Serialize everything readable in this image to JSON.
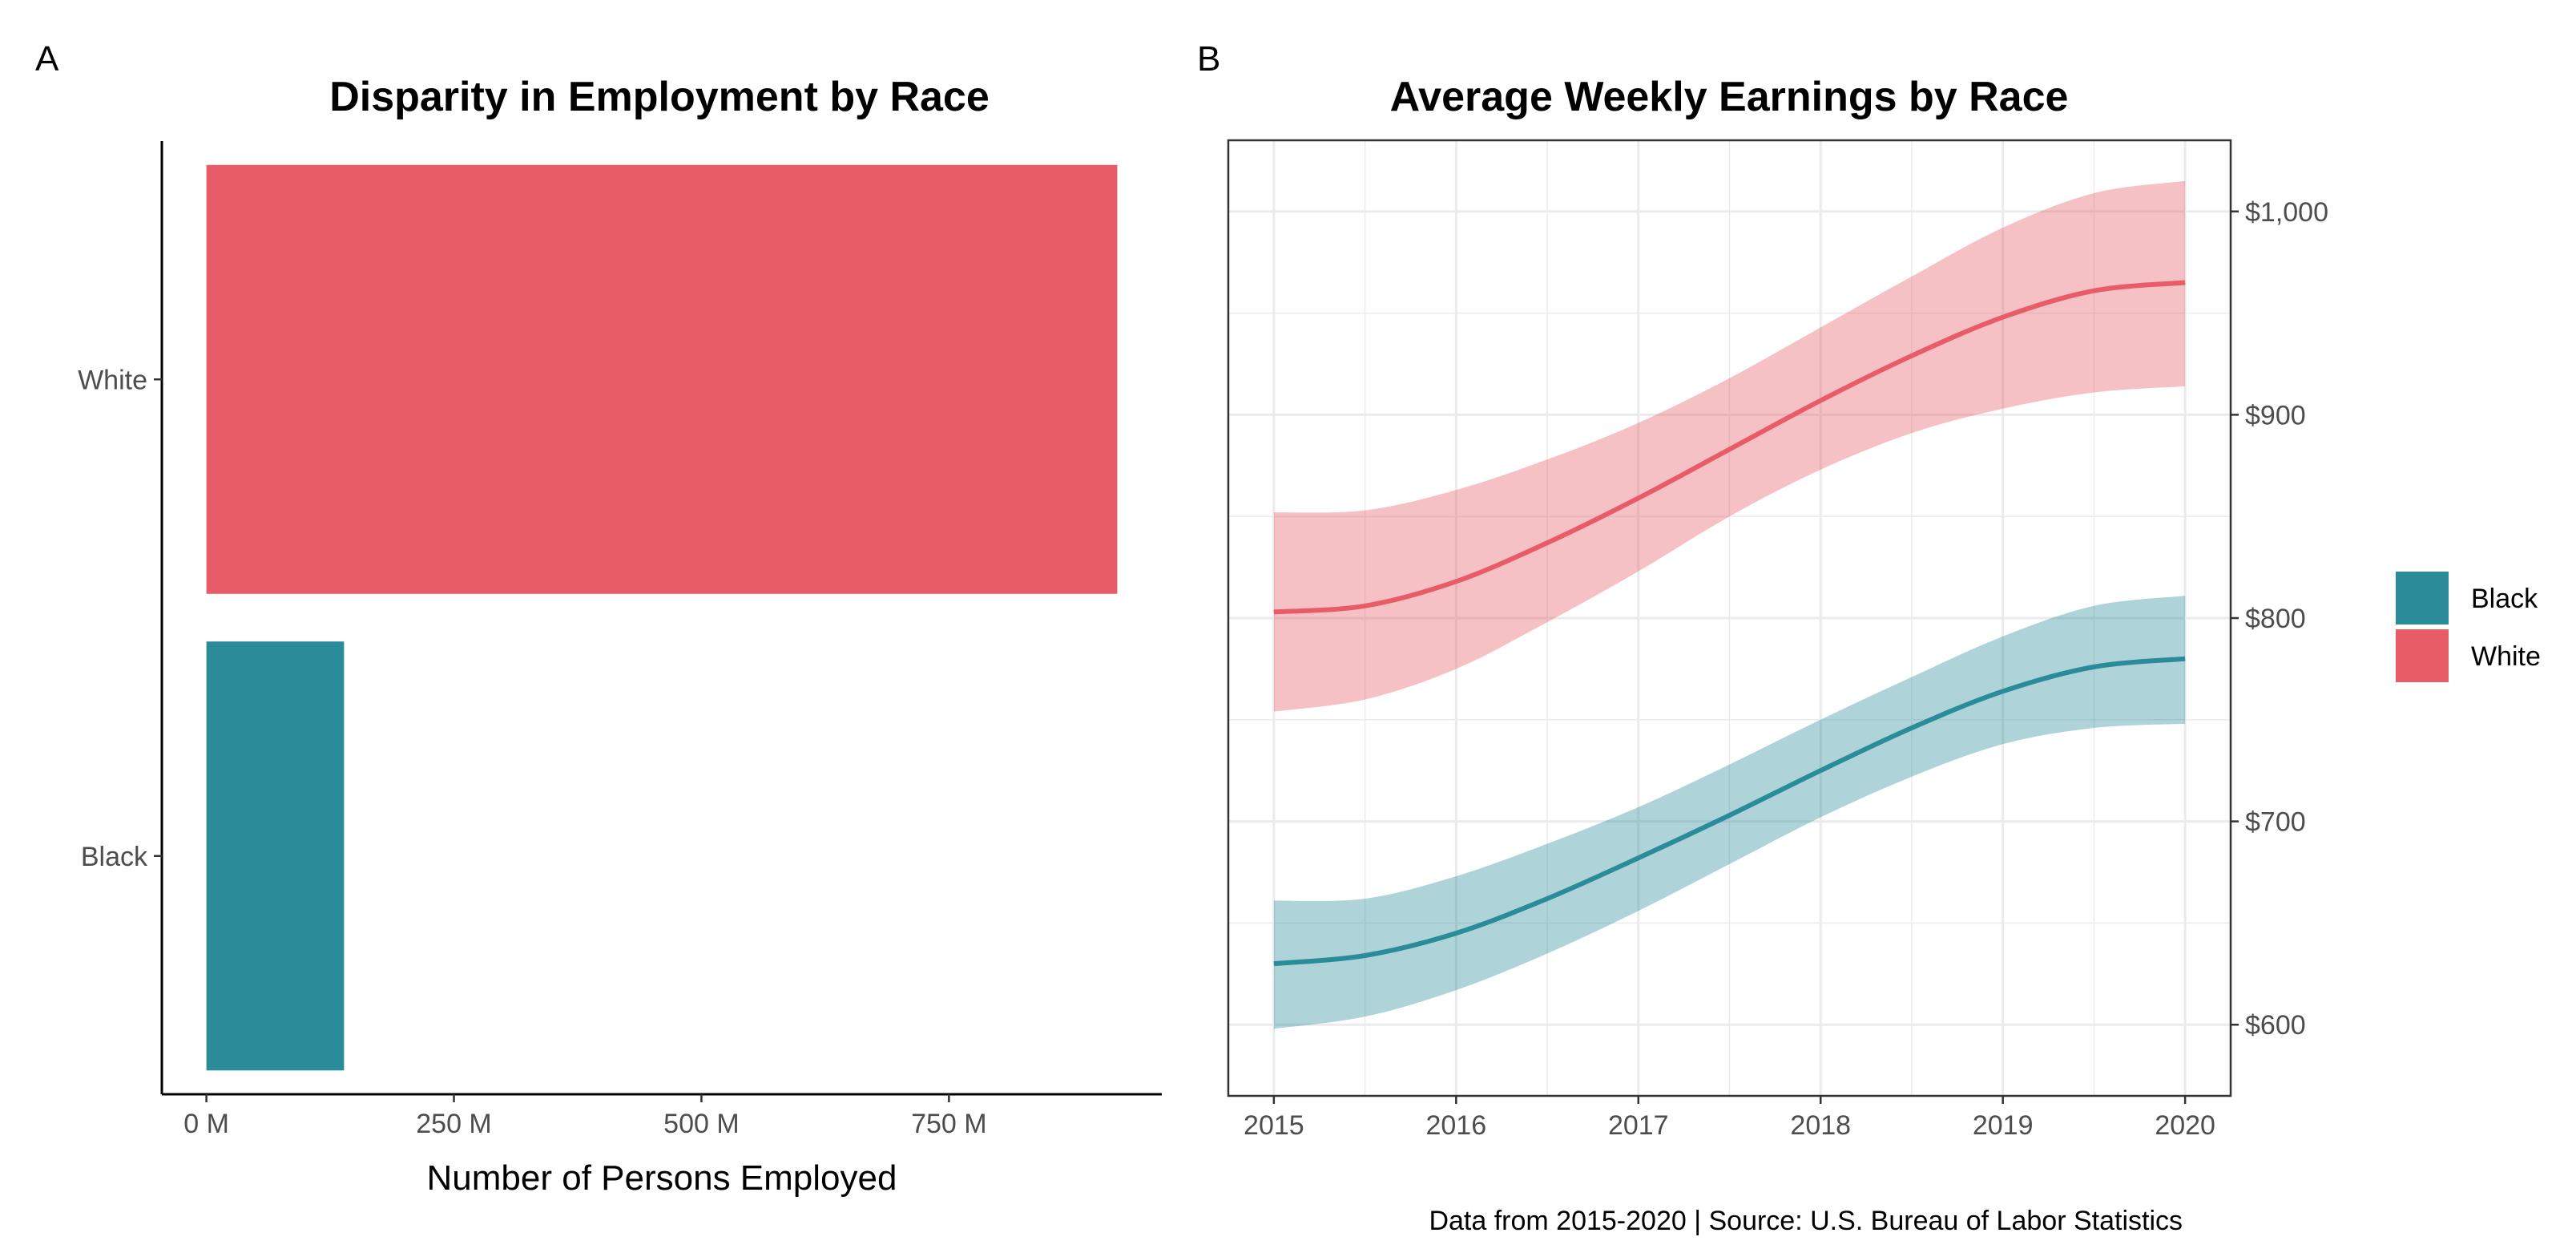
{
  "colors": {
    "Black": "#2a8c99",
    "White": "#e85c67",
    "grid": "#ebebeb",
    "axis": "#000000",
    "tick_text": "#4d4d4d"
  },
  "chart_data": [
    {
      "panel": "A",
      "type": "bar",
      "orientation": "horizontal",
      "title": "Disparity in Employment by Race",
      "xlabel": "Number of Persons Employed",
      "ylabel": "",
      "categories": [
        "Black",
        "White"
      ],
      "values": [
        139000000,
        920000000
      ],
      "xlim": [
        -45000000,
        965000000
      ],
      "xticks": [
        0,
        250000000,
        500000000,
        750000000
      ],
      "xtick_labels": [
        "0 M",
        "250 M",
        "500 M",
        "750 M"
      ],
      "grid": false
    },
    {
      "panel": "B",
      "type": "line",
      "title": "Average Weekly Earnings by Race",
      "xlabel": "",
      "ylabel": "",
      "x": [
        2015,
        2015.5,
        2016,
        2016.5,
        2017,
        2017.5,
        2018,
        2018.5,
        2019,
        2019.5,
        2020
      ],
      "series": [
        {
          "name": "Black",
          "values": [
            630,
            634,
            645,
            662,
            682,
            703,
            725,
            746,
            764,
            776,
            780
          ],
          "lower": [
            598,
            604,
            617,
            635,
            656,
            679,
            702,
            722,
            738,
            746,
            748
          ],
          "upper": [
            661,
            662,
            673,
            689,
            707,
            728,
            750,
            771,
            791,
            806,
            811
          ]
        },
        {
          "name": "White",
          "values": [
            803,
            806,
            818,
            837,
            859,
            883,
            907,
            929,
            948,
            961,
            965
          ],
          "lower": [
            754,
            760,
            775,
            798,
            823,
            850,
            873,
            891,
            903,
            911,
            914
          ],
          "upper": [
            852,
            853,
            863,
            878,
            896,
            918,
            943,
            968,
            992,
            1009,
            1015
          ]
        }
      ],
      "xlim": [
        2014.75,
        2020.25
      ],
      "ylim": [
        565,
        1035
      ],
      "xticks": [
        2015,
        2016,
        2017,
        2018,
        2019,
        2020
      ],
      "xtick_labels": [
        "2015",
        "2016",
        "2017",
        "2018",
        "2019",
        "2020"
      ],
      "yticks": [
        600,
        700,
        800,
        900,
        1000
      ],
      "ytick_labels": [
        "$600",
        "$700",
        "$800",
        "$900",
        "$1,000"
      ],
      "yaxis_position": "right",
      "grid": true,
      "legend": {
        "placement": "right",
        "entries": [
          "Black",
          "White"
        ]
      },
      "caption": "Data from 2015-2020 | Source: U.S. Bureau of Labor Statistics"
    }
  ],
  "panel_tags": [
    "A",
    "B"
  ]
}
